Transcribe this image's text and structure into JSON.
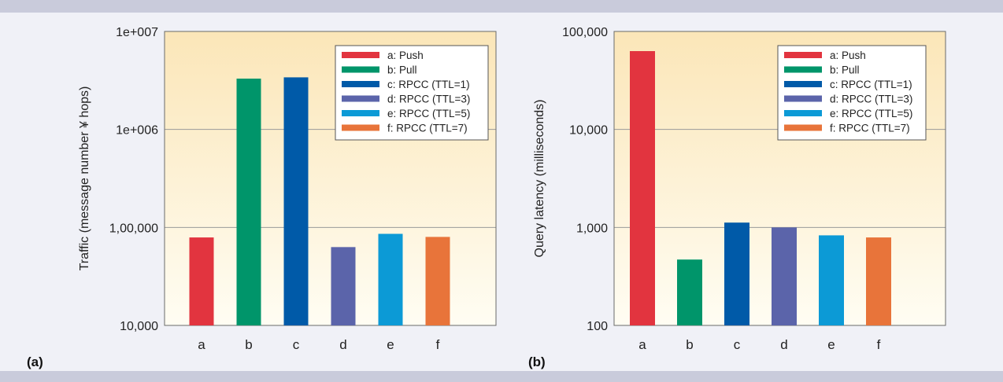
{
  "colors": {
    "push": "#e2343f",
    "pull": "#00956a",
    "rpcc1": "#005aa8",
    "rpcc3": "#5b64aa",
    "rpcc5": "#0c9ad6",
    "rpcc7": "#e8743a",
    "plot_top": "#fbe6b8",
    "plot_bottom": "#fffdf3"
  },
  "chart_data": [
    {
      "type": "bar",
      "panel_label": "(a)",
      "title": "",
      "xlabel": "",
      "ylabel": "Traffic (message number ¥ hops)",
      "yscale": "log",
      "ylim": [
        10000,
        10000000
      ],
      "yticks": [
        10000,
        100000,
        1000000,
        10000000
      ],
      "ytick_labels": [
        "10,000",
        "1,00,000",
        "1e+006",
        "1e+007"
      ],
      "categories": [
        "a",
        "b",
        "c",
        "d",
        "e",
        "f"
      ],
      "values": [
        79000,
        3300000,
        3400000,
        63000,
        86000,
        80000
      ],
      "legend": {
        "placement": "top-right",
        "entries": [
          "a: Push",
          "b: Pull",
          "c: RPCC (TTL=1)",
          "d: RPCC (TTL=3)",
          "e: RPCC (TTL=5)",
          "f: RPCC (TTL=7)"
        ]
      },
      "grid": true
    },
    {
      "type": "bar",
      "panel_label": "(b)",
      "title": "",
      "xlabel": "",
      "ylabel": "Query latency (milliseconds)",
      "yscale": "log",
      "ylim": [
        100,
        100000
      ],
      "yticks": [
        100,
        1000,
        10000,
        100000
      ],
      "ytick_labels": [
        "100",
        "1,000",
        "10,000",
        "100,000"
      ],
      "categories": [
        "a",
        "b",
        "c",
        "d",
        "e",
        "f"
      ],
      "values": [
        63000,
        470,
        1120,
        1000,
        830,
        790
      ],
      "legend": {
        "placement": "top-right",
        "entries": [
          "a: Push",
          "b: Pull",
          "c: RPCC (TTL=1)",
          "d: RPCC (TTL=3)",
          "e: RPCC (TTL=5)",
          "f: RPCC (TTL=7)"
        ]
      },
      "grid": true
    }
  ]
}
